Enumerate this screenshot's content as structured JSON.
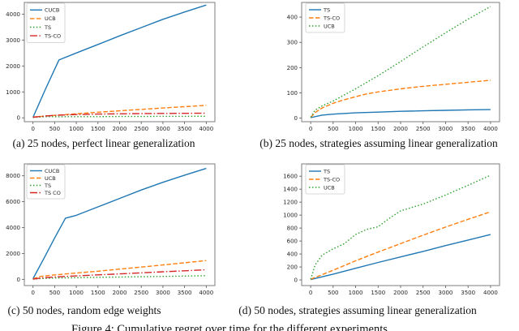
{
  "colors": {
    "blue": "#1f77b4",
    "orange": "#ff7f0e",
    "green": "#2ca02c",
    "red": "#d62728"
  },
  "figure": {
    "subcaptions": {
      "a": "(a) 25 nodes, perfect linear generalization",
      "b": "(b) 25 nodes, strategies assuming linear generalization",
      "c": "(c) 50 nodes, random edge weights",
      "d": "(d) 50 nodes, strategies assuming linear generalization"
    },
    "caption_partially_visible": "Figure 4: Cumulative regret over time for the different experiments"
  },
  "chart_data": [
    {
      "id": "a",
      "type": "line",
      "title": "",
      "xlabel": "",
      "ylabel": "",
      "xlim": [
        -200,
        4200
      ],
      "ylim": [
        -150,
        4450
      ],
      "x_ticks": [
        0,
        500,
        1000,
        1500,
        2000,
        2500,
        3000,
        3500,
        4000
      ],
      "y_ticks": [
        0,
        1000,
        2000,
        3000,
        4000
      ],
      "grid": false,
      "legend_position": "upper left",
      "series": [
        {
          "name": "CUCB",
          "color": "blue",
          "style": "solid",
          "points": [
            [
              0,
              20
            ],
            [
              300,
              1150
            ],
            [
              600,
              2230
            ],
            [
              1000,
              2500
            ],
            [
              1500,
              2830
            ],
            [
              2000,
              3160
            ],
            [
              2500,
              3480
            ],
            [
              3000,
              3800
            ],
            [
              3500,
              4080
            ],
            [
              4000,
              4350
            ]
          ]
        },
        {
          "name": "UCB",
          "color": "orange",
          "style": "dashed",
          "points": [
            [
              0,
              30
            ],
            [
              250,
              60
            ],
            [
              500,
              95
            ],
            [
              1000,
              155
            ],
            [
              1500,
              215
            ],
            [
              2000,
              270
            ],
            [
              2500,
              325
            ],
            [
              3000,
              380
            ],
            [
              3500,
              430
            ],
            [
              4000,
              480
            ]
          ]
        },
        {
          "name": "TS",
          "color": "green",
          "style": "dotted",
          "points": [
            [
              0,
              15
            ],
            [
              300,
              45
            ],
            [
              600,
              40
            ],
            [
              1000,
              45
            ],
            [
              1500,
              45
            ],
            [
              2000,
              50
            ],
            [
              2500,
              50
            ],
            [
              3000,
              55
            ],
            [
              3500,
              55
            ],
            [
              4000,
              60
            ]
          ]
        },
        {
          "name": "TS-CO",
          "color": "red",
          "style": "dashdot",
          "points": [
            [
              0,
              20
            ],
            [
              250,
              65
            ],
            [
              500,
              95
            ],
            [
              1000,
              125
            ],
            [
              1500,
              145
            ],
            [
              2000,
              155
            ],
            [
              2500,
              162
            ],
            [
              3000,
              168
            ],
            [
              3500,
              172
            ],
            [
              4000,
              178
            ]
          ]
        }
      ]
    },
    {
      "id": "b",
      "type": "line",
      "title": "",
      "xlabel": "",
      "ylabel": "",
      "xlim": [
        -200,
        4200
      ],
      "ylim": [
        -14,
        458
      ],
      "x_ticks": [
        0,
        500,
        1000,
        1500,
        2000,
        2500,
        3000,
        3500,
        4000
      ],
      "y_ticks": [
        0,
        100,
        200,
        300,
        400
      ],
      "grid": false,
      "legend_position": "upper left",
      "series": [
        {
          "name": "TS",
          "color": "blue",
          "style": "solid",
          "points": [
            [
              0,
              2
            ],
            [
              250,
              12
            ],
            [
              500,
              16
            ],
            [
              1000,
              21
            ],
            [
              1500,
              24
            ],
            [
              2000,
              27
            ],
            [
              2500,
              29
            ],
            [
              3000,
              31
            ],
            [
              3500,
              33
            ],
            [
              4000,
              34
            ]
          ]
        },
        {
          "name": "TS-CO",
          "color": "orange",
          "style": "dashed",
          "points": [
            [
              0,
              3
            ],
            [
              100,
              22
            ],
            [
              250,
              40
            ],
            [
              500,
              59
            ],
            [
              750,
              73
            ],
            [
              1000,
              85
            ],
            [
              1250,
              96
            ],
            [
              1500,
              104
            ],
            [
              2000,
              116
            ],
            [
              2500,
              126
            ],
            [
              3000,
              134
            ],
            [
              3500,
              142
            ],
            [
              4000,
              150
            ]
          ]
        },
        {
          "name": "UCB",
          "color": "green",
          "style": "dotted",
          "points": [
            [
              0,
              3
            ],
            [
              100,
              32
            ],
            [
              250,
              48
            ],
            [
              500,
              68
            ],
            [
              1000,
              116
            ],
            [
              1500,
              168
            ],
            [
              2000,
              224
            ],
            [
              2500,
              282
            ],
            [
              3000,
              338
            ],
            [
              3500,
              392
            ],
            [
              4000,
              442
            ]
          ]
        }
      ]
    },
    {
      "id": "c",
      "type": "line",
      "title": "",
      "xlabel": "",
      "ylabel": "",
      "xlim": [
        -200,
        4200
      ],
      "ylim": [
        -480,
        8920
      ],
      "x_ticks": [
        0,
        500,
        1000,
        1500,
        2000,
        2500,
        3000,
        3500,
        4000
      ],
      "y_ticks": [
        0,
        2000,
        4000,
        6000,
        8000
      ],
      "grid": false,
      "legend_position": "upper left",
      "series": [
        {
          "name": "CUCB",
          "color": "blue",
          "style": "solid",
          "points": [
            [
              0,
              50
            ],
            [
              250,
              1600
            ],
            [
              500,
              3200
            ],
            [
              750,
              4730
            ],
            [
              1000,
              4950
            ],
            [
              1500,
              5600
            ],
            [
              2000,
              6250
            ],
            [
              2500,
              6900
            ],
            [
              3000,
              7500
            ],
            [
              3500,
              8050
            ],
            [
              4000,
              8570
            ]
          ]
        },
        {
          "name": "UCB",
          "color": "orange",
          "style": "dashed",
          "points": [
            [
              0,
              40
            ],
            [
              150,
              200
            ],
            [
              300,
              280
            ],
            [
              500,
              340
            ],
            [
              1000,
              490
            ],
            [
              1500,
              630
            ],
            [
              2000,
              790
            ],
            [
              2500,
              950
            ],
            [
              3000,
              1110
            ],
            [
              3500,
              1280
            ],
            [
              4000,
              1450
            ]
          ]
        },
        {
          "name": "TS",
          "color": "green",
          "style": "dotted",
          "points": [
            [
              0,
              20
            ],
            [
              250,
              70
            ],
            [
              500,
              100
            ],
            [
              1000,
              130
            ],
            [
              1500,
              160
            ],
            [
              2000,
              180
            ],
            [
              2500,
              205
            ],
            [
              3000,
              230
            ],
            [
              3500,
              255
            ],
            [
              4000,
              285
            ]
          ]
        },
        {
          "name": "TS CO",
          "color": "red",
          "style": "dashdot",
          "points": [
            [
              0,
              20
            ],
            [
              150,
              90
            ],
            [
              300,
              140
            ],
            [
              500,
              185
            ],
            [
              1000,
              265
            ],
            [
              1500,
              345
            ],
            [
              2000,
              425
            ],
            [
              2500,
              505
            ],
            [
              3000,
              585
            ],
            [
              3500,
              660
            ],
            [
              4000,
              740
            ]
          ]
        }
      ]
    },
    {
      "id": "d",
      "type": "line",
      "title": "",
      "xlabel": "",
      "ylabel": "",
      "xlim": [
        -200,
        4200
      ],
      "ylim": [
        -87,
        1790
      ],
      "x_ticks": [
        0,
        500,
        1000,
        1500,
        2000,
        2500,
        3000,
        3500,
        4000
      ],
      "y_ticks": [
        0,
        200,
        400,
        600,
        800,
        1000,
        1200,
        1400,
        1600
      ],
      "grid": false,
      "legend_position": "upper left",
      "series": [
        {
          "name": "TS",
          "color": "blue",
          "style": "solid",
          "points": [
            [
              0,
              5
            ],
            [
              500,
              90
            ],
            [
              1000,
              180
            ],
            [
              1500,
              270
            ],
            [
              2000,
              355
            ],
            [
              2500,
              440
            ],
            [
              3000,
              530
            ],
            [
              3500,
              615
            ],
            [
              4000,
              700
            ]
          ]
        },
        {
          "name": "TS-CO",
          "color": "orange",
          "style": "dashed",
          "points": [
            [
              0,
              10
            ],
            [
              500,
              150
            ],
            [
              1000,
              295
            ],
            [
              1500,
              430
            ],
            [
              2000,
              560
            ],
            [
              2500,
              690
            ],
            [
              3000,
              815
            ],
            [
              3500,
              935
            ],
            [
              4000,
              1050
            ]
          ]
        },
        {
          "name": "UCB",
          "color": "green",
          "style": "dotted",
          "points": [
            [
              0,
              10
            ],
            [
              100,
              230
            ],
            [
              250,
              380
            ],
            [
              500,
              480
            ],
            [
              750,
              560
            ],
            [
              1000,
              700
            ],
            [
              1250,
              780
            ],
            [
              1500,
              820
            ],
            [
              1750,
              950
            ],
            [
              2000,
              1065
            ],
            [
              2500,
              1170
            ],
            [
              3000,
              1310
            ],
            [
              3500,
              1460
            ],
            [
              4000,
              1615
            ]
          ]
        }
      ]
    }
  ]
}
